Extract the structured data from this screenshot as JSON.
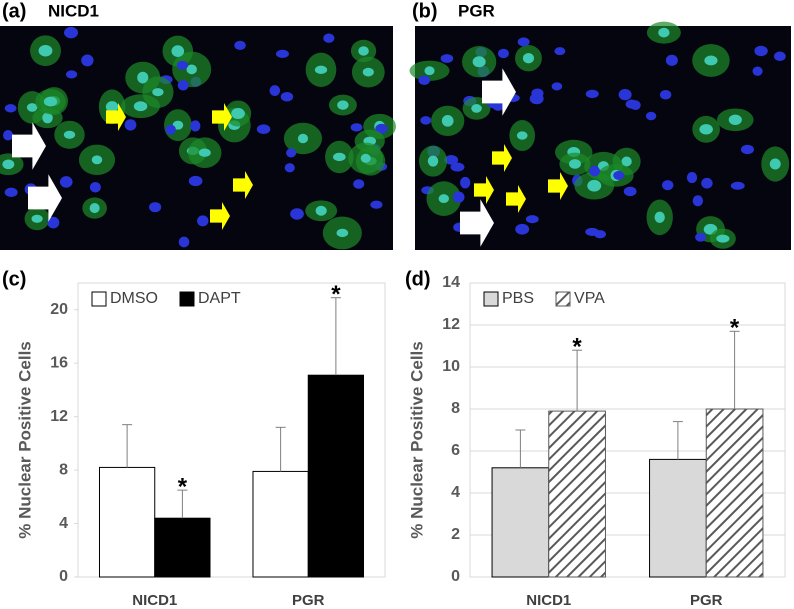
{
  "images": [
    {
      "label": "(a)",
      "title": "NICD1"
    },
    {
      "label": "(b)",
      "title": "PGR"
    }
  ],
  "chart_data": [
    {
      "type": "bar",
      "panel_label": "(c)",
      "y_label": "% Nuclear Positive Cells",
      "categories": [
        "NICD1",
        "PGR"
      ],
      "series": [
        {
          "name": "DMSO",
          "color": "#ffffff",
          "values": [
            8.2,
            7.9
          ],
          "errors": [
            3.2,
            3.3
          ]
        },
        {
          "name": "DAPT",
          "color": "#000000",
          "values": [
            4.4,
            15.1
          ],
          "errors": [
            2.1,
            5.8
          ]
        }
      ],
      "annotations": [
        {
          "text": "*",
          "category": "NICD1",
          "series": "DAPT"
        },
        {
          "text": "*",
          "category": "PGR",
          "series": "DAPT"
        }
      ],
      "ylim": [
        0,
        22
      ],
      "yticks": [
        0,
        4,
        8,
        12,
        16,
        20
      ],
      "grid": false,
      "legend": "upper-left"
    },
    {
      "type": "bar",
      "panel_label": "(d)",
      "y_label": "% Nuclear Positive Cells",
      "categories": [
        "NICD1",
        "PGR"
      ],
      "series": [
        {
          "name": "PBS",
          "color": "#d9d9d9",
          "values": [
            5.2,
            5.6
          ],
          "errors": [
            1.8,
            1.8
          ]
        },
        {
          "name": "VPA",
          "color": "#595959",
          "pattern": "hatch",
          "values": [
            7.9,
            8.0
          ],
          "errors": [
            2.9,
            3.7
          ]
        }
      ],
      "annotations": [
        {
          "text": "*",
          "category": "NICD1",
          "series": "VPA"
        },
        {
          "text": "*",
          "category": "PGR",
          "series": "VPA"
        }
      ],
      "ylim": [
        0,
        14
      ],
      "yticks": [
        0,
        2,
        4,
        6,
        8,
        10,
        12,
        14
      ],
      "grid": true,
      "legend": "upper-left"
    }
  ]
}
